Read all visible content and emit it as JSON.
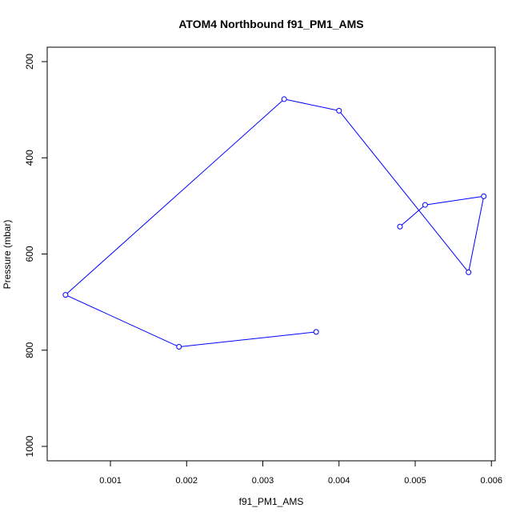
{
  "chart_data": {
    "type": "line",
    "title": "ATOM4 Northbound f91_PM1_AMS",
    "xlabel": "f91_PM1_AMS",
    "ylabel": "Pressure (mbar)",
    "xlim": [
      0.00017,
      0.00605
    ],
    "ylim": [
      1030,
      170
    ],
    "y_inverted": true,
    "grid": false,
    "legend": "none",
    "x_ticks": [
      0.001,
      0.002,
      0.003,
      0.004,
      0.005,
      0.006
    ],
    "x_tick_labels": [
      "0.001",
      "0.002",
      "0.003",
      "0.004",
      "0.005",
      "0.006"
    ],
    "y_ticks": [
      200,
      400,
      600,
      800,
      1000
    ],
    "y_tick_labels": [
      "200",
      "400",
      "600",
      "800",
      "1000"
    ],
    "series": [
      {
        "color": "#0000ff",
        "marker": "open-circle",
        "points": [
          {
            "x": 0.0037,
            "y": 762
          },
          {
            "x": 0.0019,
            "y": 793
          },
          {
            "x": 0.00041,
            "y": 685
          },
          {
            "x": 0.00328,
            "y": 278
          },
          {
            "x": 0.004,
            "y": 302
          },
          {
            "x": 0.0057,
            "y": 638
          },
          {
            "x": 0.0059,
            "y": 480
          },
          {
            "x": 0.00513,
            "y": 498
          },
          {
            "x": 0.0048,
            "y": 543
          }
        ]
      }
    ]
  }
}
